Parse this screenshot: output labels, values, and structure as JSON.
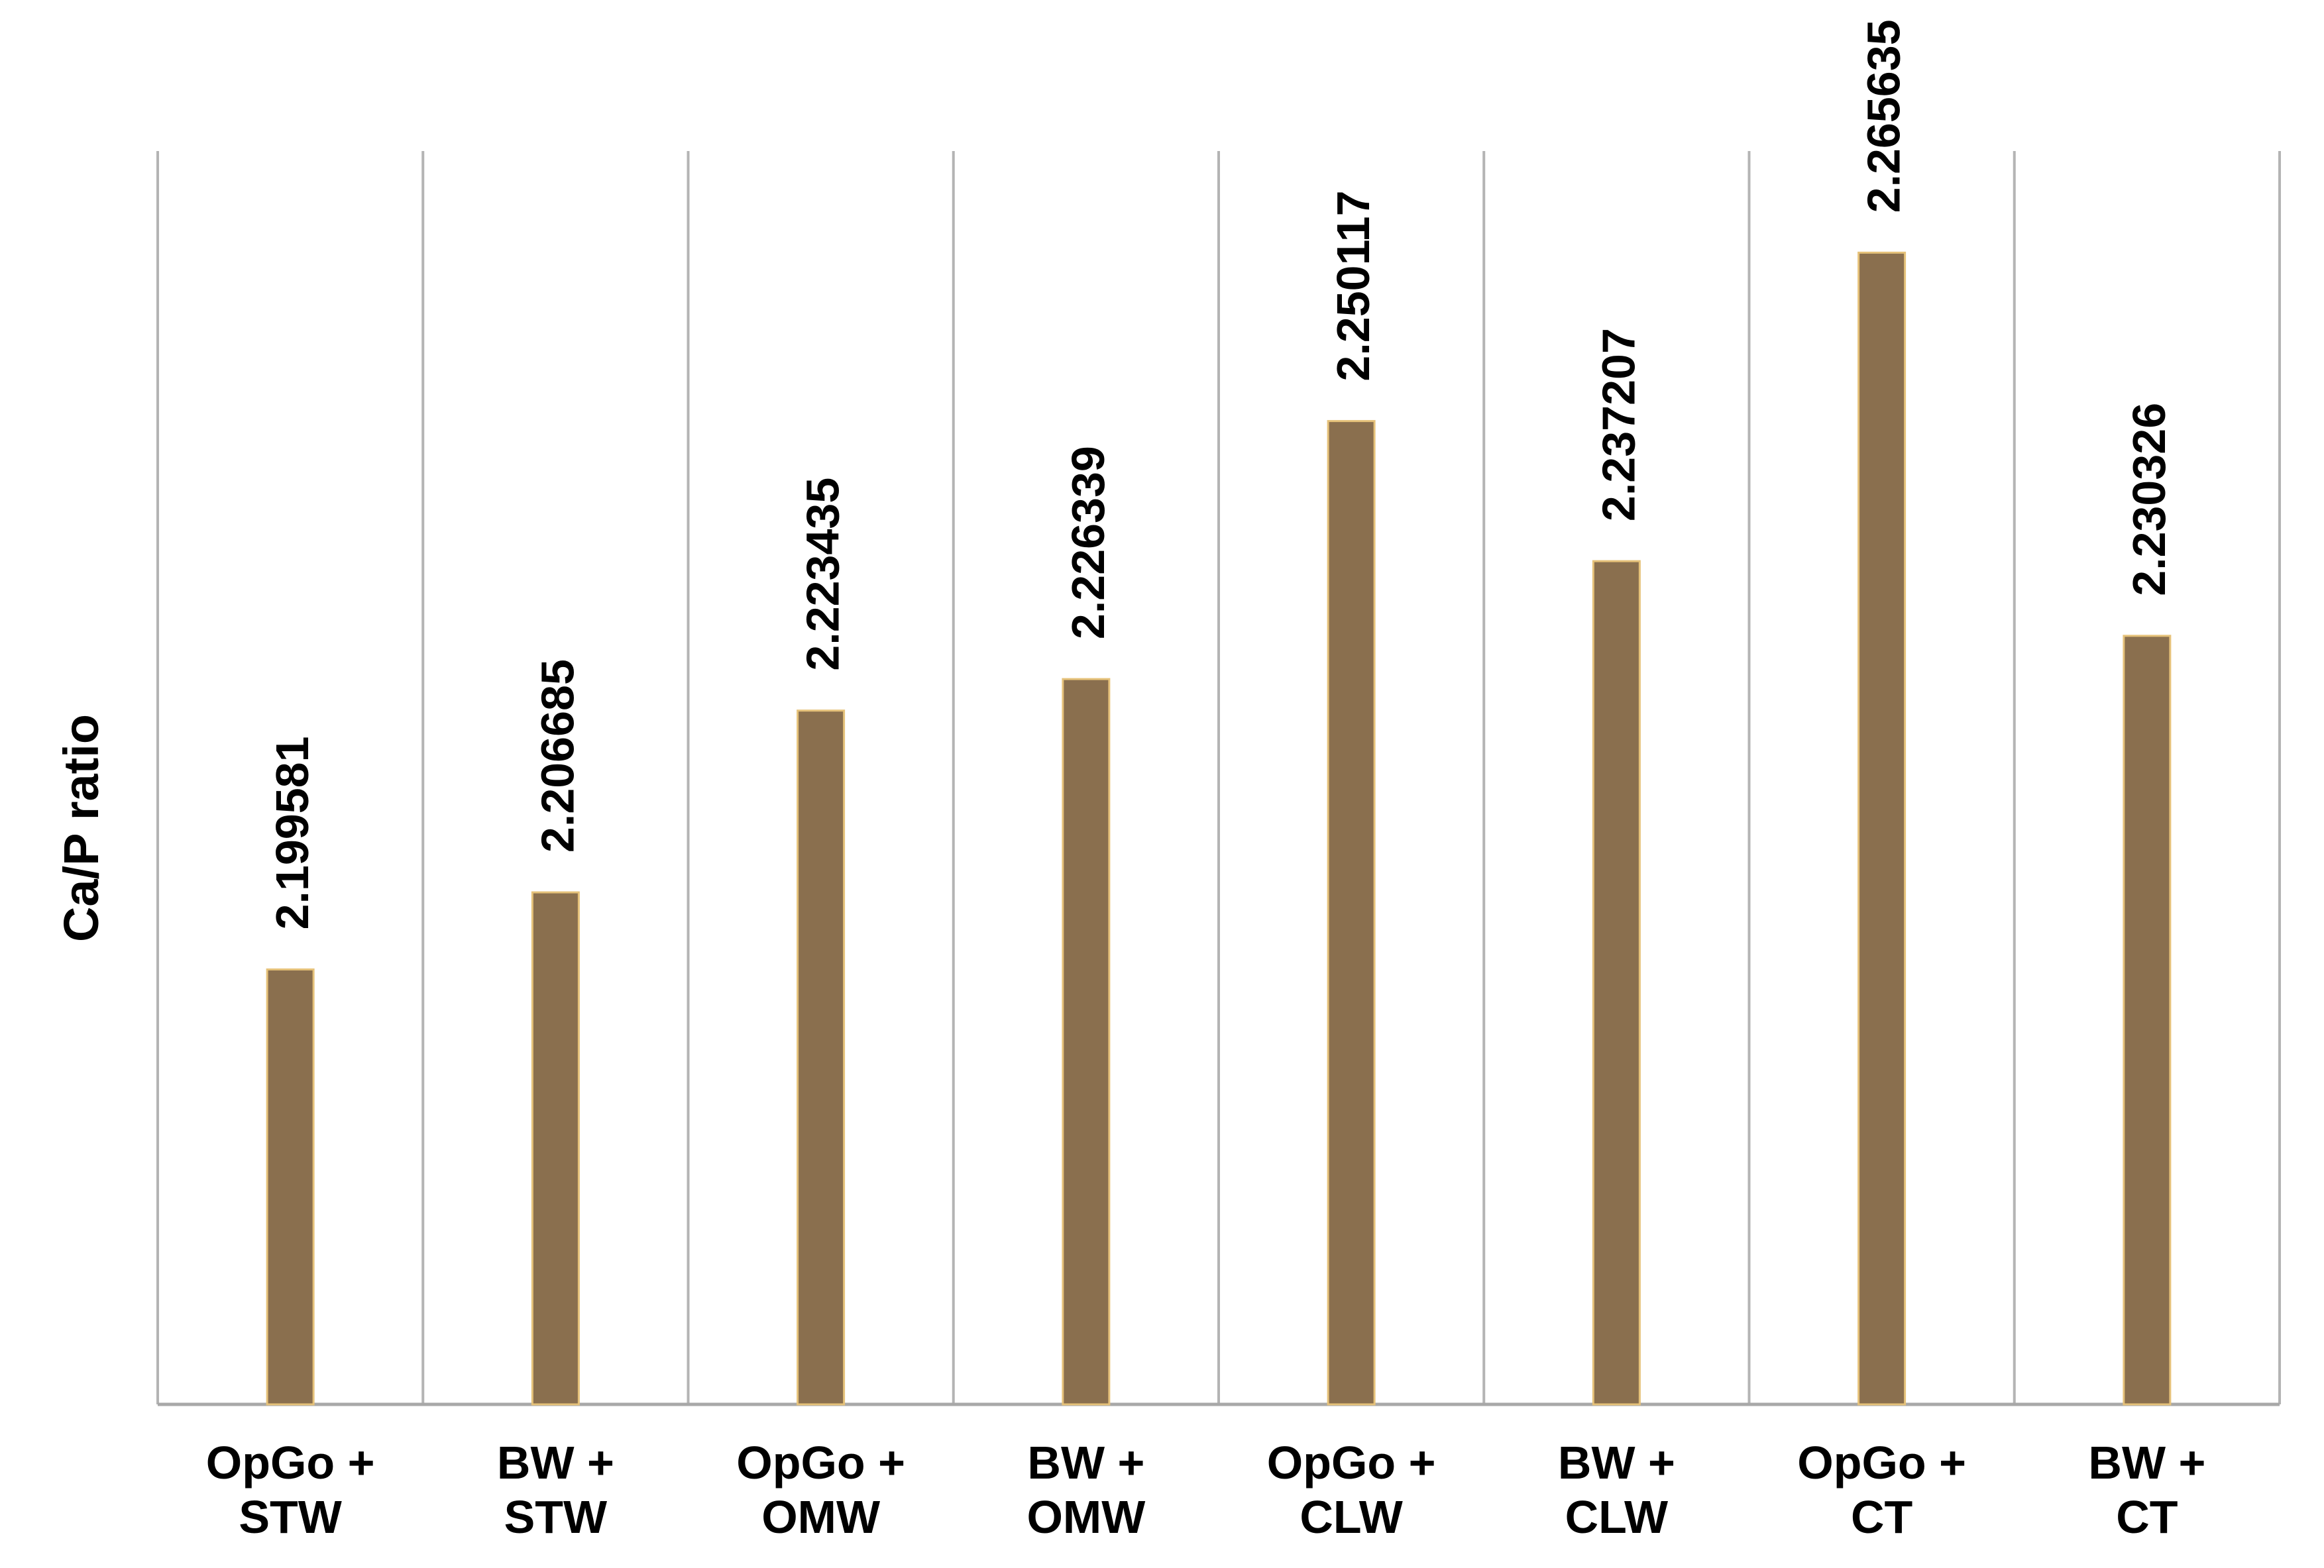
{
  "chart_data": {
    "type": "bar",
    "title": "",
    "xlabel": "",
    "ylabel": "Ca/P ratio",
    "categories": [
      [
        "OpGo +",
        "STW"
      ],
      [
        "BW +",
        "STW"
      ],
      [
        "OpGo +",
        "OMW"
      ],
      [
        "BW +",
        "OMW"
      ],
      [
        "OpGo +",
        "CLW"
      ],
      [
        "BW +",
        "CLW"
      ],
      [
        "OpGo +",
        "CT"
      ],
      [
        "BW +",
        "CT"
      ]
    ],
    "values": [
      2.199581,
      2.206685,
      2.223435,
      2.226339,
      2.250117,
      2.237207,
      2.265635,
      2.230326
    ],
    "value_labels": [
      "2.199581",
      "2.206685",
      "2.223435",
      "2.226339",
      "2.250117",
      "2.237207",
      "2.265635",
      "2.230326"
    ],
    "ylim": [
      2.1595,
      2.275
    ],
    "grid": "vertical category separators",
    "legend": "none",
    "colors": {
      "bar_fill": "#8a6f4e",
      "bar_edge": "#e6c27a",
      "grid": "#b4b4b4",
      "axis": "#a8a8a8",
      "text": "#000000"
    }
  }
}
